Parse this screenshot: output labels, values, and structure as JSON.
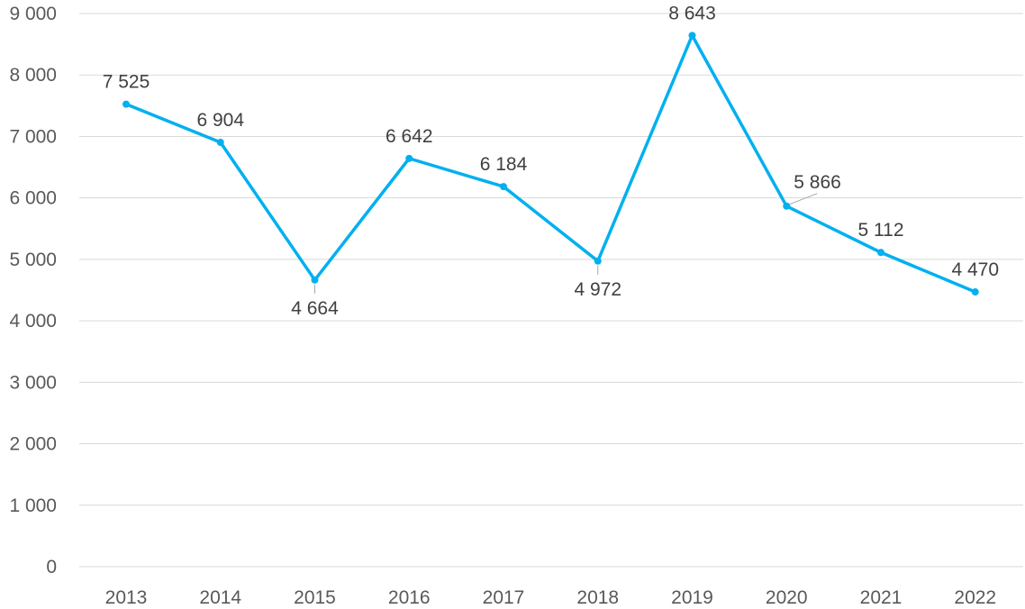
{
  "chart_data": {
    "type": "line",
    "categories": [
      "2013",
      "2014",
      "2015",
      "2016",
      "2017",
      "2018",
      "2019",
      "2020",
      "2021",
      "2022"
    ],
    "series": [
      {
        "values": [
          7525,
          6904,
          4664,
          6642,
          6184,
          4972,
          8643,
          5866,
          5112,
          4470
        ]
      }
    ],
    "data_labels": [
      "7 525",
      "6 904",
      "4 664",
      "6 642",
      "6 184",
      "4 972",
      "8 643",
      "5 866",
      "5 112",
      "4 470"
    ],
    "data_label_positions": [
      "above",
      "above",
      "below",
      "above",
      "above",
      "below",
      "above",
      "above-right",
      "above",
      "above"
    ],
    "y_ticks": [
      0,
      1000,
      2000,
      3000,
      4000,
      5000,
      6000,
      7000,
      8000,
      9000
    ],
    "y_tick_labels": [
      "0",
      "1 000",
      "2 000",
      "3 000",
      "4 000",
      "5 000",
      "6 000",
      "7 000",
      "8 000",
      "9 000"
    ],
    "ylim": [
      0,
      9000
    ],
    "grid": "horizontal",
    "legend": "none",
    "title": "",
    "xlabel": "",
    "ylabel": "",
    "colors": {
      "series": "#00b0f0",
      "grid": "#d9d9d9",
      "tick_text": "#595959",
      "label_text": "#404040"
    }
  }
}
